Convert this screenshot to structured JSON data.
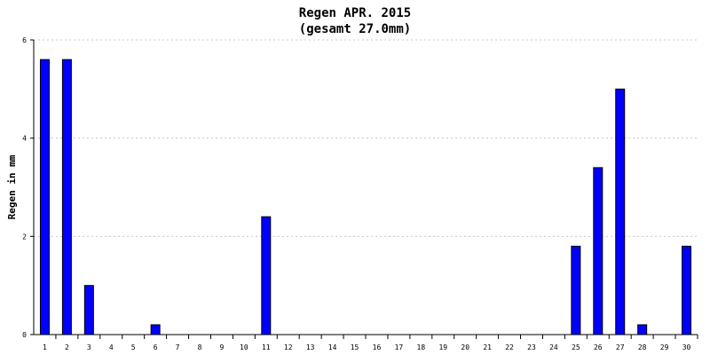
{
  "chart_data": {
    "type": "bar",
    "title": "Regen APR. 2015",
    "subtitle": "(gesamt 27.0mm)",
    "xlabel": "",
    "ylabel": "Regen in mm",
    "ylim": [
      0,
      6
    ],
    "yticks": [
      "0",
      "2",
      "4",
      "6"
    ],
    "grid": true,
    "categories": [
      "1",
      "2",
      "3",
      "4",
      "5",
      "6",
      "7",
      "8",
      "9",
      "10",
      "11",
      "12",
      "13",
      "14",
      "15",
      "16",
      "17",
      "18",
      "19",
      "20",
      "21",
      "22",
      "23",
      "24",
      "25",
      "26",
      "27",
      "28",
      "29",
      "30"
    ],
    "values": [
      5.6,
      5.6,
      1.0,
      0,
      0,
      0.2,
      0,
      0,
      0,
      0,
      2.4,
      0,
      0,
      0,
      0,
      0,
      0,
      0,
      0,
      0,
      0,
      0,
      0,
      0,
      1.8,
      3.4,
      5.0,
      0.2,
      0,
      1.8
    ],
    "colors": {
      "bar": "#0000ff",
      "grid": "#c8c8c8",
      "axis": "#000000"
    }
  }
}
